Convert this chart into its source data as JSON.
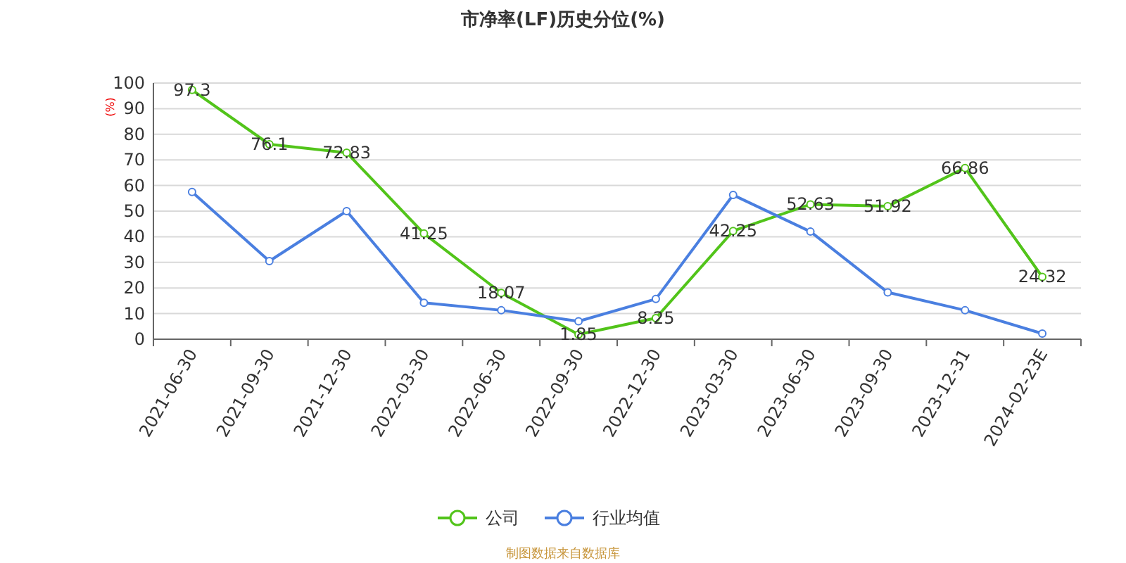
{
  "chart_data": {
    "type": "line",
    "title": "市净率(LF)历史分位(%)",
    "ylabel": "(%)",
    "categories": [
      "2021-06-30",
      "2021-09-30",
      "2021-12-30",
      "2022-03-30",
      "2022-06-30",
      "2022-09-30",
      "2022-12-30",
      "2023-03-30",
      "2023-06-30",
      "2023-09-30",
      "2023-12-31",
      "2024-02-23E"
    ],
    "series": [
      {
        "name": "公司",
        "color": "#52c41a",
        "values": [
          97.3,
          76.1,
          72.83,
          41.25,
          18.07,
          1.85,
          8.25,
          42.25,
          52.63,
          51.92,
          66.86,
          24.32
        ],
        "value_labels": [
          "97.3",
          "76.1",
          "72.83",
          "41.25",
          "18.07",
          "1.85",
          "8.25",
          "42.25",
          "52.63",
          "51.92",
          "66.86",
          "24.32"
        ]
      },
      {
        "name": "行业均值",
        "color": "#4a7fe0",
        "values": [
          57.5,
          30.5,
          50,
          14.2,
          11.3,
          7,
          15.7,
          56.3,
          42,
          18.3,
          11.3,
          2.2
        ]
      }
    ],
    "ylim": [
      0,
      100
    ],
    "yticks": [
      0,
      10,
      20,
      30,
      40,
      50,
      60,
      70,
      80,
      90,
      100
    ],
    "grid": "y",
    "legend": "bottom",
    "marker": "circle",
    "line_style": "solid",
    "annotations": [
      "制图数据来自数据库"
    ]
  }
}
